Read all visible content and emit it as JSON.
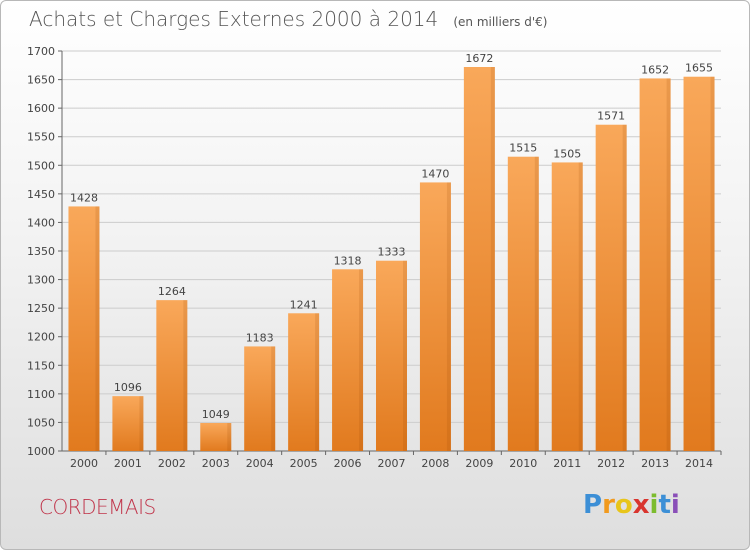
{
  "header": {
    "title": "Achats et Charges Externes 2000 à 2014",
    "unit": "(en milliers d'€)"
  },
  "footer": {
    "town": "CORDEMAIS",
    "logo_text": "Proxiti"
  },
  "colors": {
    "bar_top": "#f9a85a",
    "bar_bottom": "#e17a1e",
    "grid": "#cccccc",
    "town": "#c0344a"
  },
  "chart_data": {
    "type": "bar",
    "title": "Achats et Charges Externes 2000 à 2014",
    "subtitle": "(en milliers d'€)",
    "xlabel": "",
    "ylabel": "",
    "categories": [
      "2000",
      "2001",
      "2002",
      "2003",
      "2004",
      "2005",
      "2006",
      "2007",
      "2008",
      "2009",
      "2010",
      "2011",
      "2012",
      "2013",
      "2014"
    ],
    "values": [
      1428,
      1096,
      1264,
      1049,
      1183,
      1241,
      1318,
      1333,
      1470,
      1672,
      1515,
      1505,
      1571,
      1652,
      1655
    ],
    "ylim": [
      1000,
      1700
    ],
    "yticks": [
      1000,
      1050,
      1100,
      1150,
      1200,
      1250,
      1300,
      1350,
      1400,
      1450,
      1500,
      1550,
      1600,
      1650,
      1700
    ],
    "grid": true,
    "legend": "none"
  }
}
